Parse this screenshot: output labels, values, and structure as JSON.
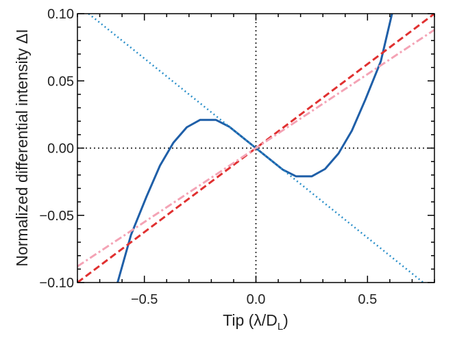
{
  "chart_data": {
    "type": "line",
    "xlabel": "Tip (λ/D",
    "xlabel_sub": "L",
    "xlabel_end": ")",
    "ylabel": "Normalized differential intensity ΔI",
    "xlim": [
      -0.8,
      0.8
    ],
    "ylim": [
      -0.1,
      0.1
    ],
    "x_ticks": [
      -0.5,
      0.0,
      0.5
    ],
    "x_tick_labels": [
      "−0.5",
      "0.0",
      "0.5"
    ],
    "y_ticks": [
      -0.1,
      -0.05,
      0.0,
      0.05,
      0.1
    ],
    "y_tick_labels": [
      "−0.10",
      "−0.05",
      "0.00",
      "0.05",
      "0.10"
    ],
    "x_minor_step": 0.1,
    "y_minor_step": 0.01,
    "reference_lines": [
      {
        "name": "zero-x-line",
        "orientation": "vertical",
        "value": 0.0,
        "color": "#000000",
        "style": "dotted"
      },
      {
        "name": "zero-y-line",
        "orientation": "horizontal",
        "value": 0.0,
        "color": "#000000",
        "style": "dotted"
      }
    ],
    "series": [
      {
        "name": "cubic-response",
        "color": "#1f5fa8",
        "style": "solid",
        "points": [
          [
            -0.62,
            -0.1
          ],
          [
            -0.56,
            -0.0647
          ],
          [
            -0.49,
            -0.036
          ],
          [
            -0.43,
            -0.013
          ],
          [
            -0.37,
            0.004
          ],
          [
            -0.31,
            0.0155
          ],
          [
            -0.25,
            0.021
          ],
          [
            -0.18,
            0.021
          ],
          [
            -0.12,
            0.016
          ],
          [
            -0.06,
            0.008
          ],
          [
            0.0,
            0.0
          ],
          [
            0.06,
            -0.008
          ],
          [
            0.12,
            -0.016
          ],
          [
            0.18,
            -0.021
          ],
          [
            0.25,
            -0.021
          ],
          [
            0.31,
            -0.0155
          ],
          [
            0.37,
            -0.004
          ],
          [
            0.43,
            0.013
          ],
          [
            0.49,
            0.036
          ],
          [
            0.56,
            0.0647
          ],
          [
            0.61,
            0.1
          ]
        ]
      },
      {
        "name": "negative-linear",
        "color": "#2a8fc9",
        "style": "dotted",
        "points": [
          [
            -0.75,
            0.1
          ],
          [
            0.75,
            -0.1
          ]
        ]
      },
      {
        "name": "positive-linear",
        "color": "#e03030",
        "style": "dashed",
        "points": [
          [
            -0.8,
            -0.1
          ],
          [
            0.8,
            0.1
          ]
        ]
      },
      {
        "name": "positive-linear-shallow",
        "color": "#f4a3b5",
        "style": "dashdot",
        "points": [
          [
            -0.8,
            -0.088
          ],
          [
            0.8,
            0.088
          ]
        ]
      }
    ]
  }
}
